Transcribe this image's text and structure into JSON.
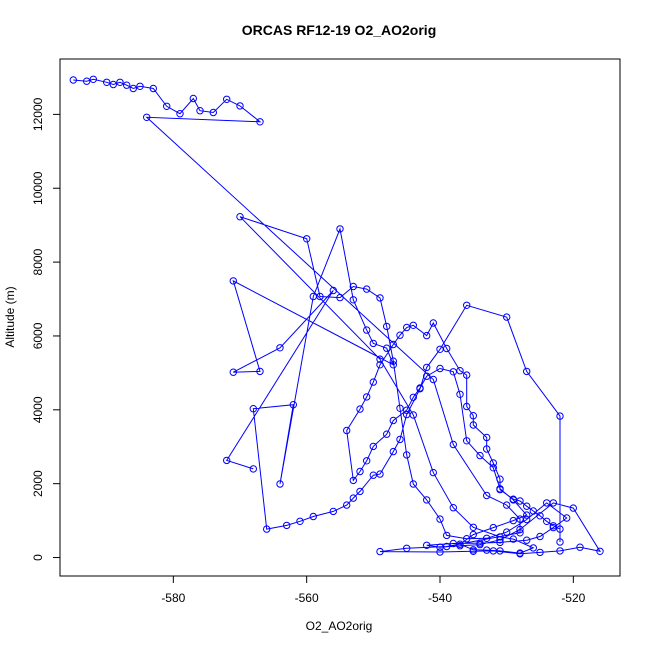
{
  "chart_data": {
    "type": "line",
    "title": "ORCAS RF12-19 O2_AO2orig",
    "xlabel": "O2_AO2orig",
    "ylabel": "Altitude (m)",
    "xlim": [
      -597,
      -513
    ],
    "ylim": [
      -500,
      13500
    ],
    "x_ticks": [
      -580,
      -560,
      -540,
      -520
    ],
    "y_ticks": [
      0,
      2000,
      4000,
      6000,
      8000,
      10000,
      12000
    ],
    "marker": "open-circle",
    "grid": false,
    "colors": {
      "series": "#0000ff",
      "axis": "#000000",
      "background": "#ffffff"
    },
    "series": [
      {
        "values": [
          [
            -595,
            12930
          ],
          [
            -593,
            12900
          ],
          [
            -592,
            12950
          ],
          [
            -590,
            12870
          ],
          [
            -589,
            12810
          ],
          [
            -588,
            12870
          ],
          [
            -587,
            12790
          ],
          [
            -586,
            12700
          ],
          [
            -585,
            12760
          ],
          [
            -583,
            12700
          ],
          [
            -581,
            12220
          ],
          [
            -579,
            12020
          ],
          [
            -577,
            12430
          ],
          [
            -576,
            12100
          ],
          [
            -574,
            12050
          ],
          [
            -572,
            12410
          ],
          [
            -570,
            12230
          ],
          [
            -567,
            11800
          ],
          [
            -584,
            11920
          ],
          [
            -541,
            4820
          ],
          [
            -538,
            3060
          ],
          [
            -533,
            1680
          ],
          [
            -530,
            1420
          ],
          [
            -528,
            1040
          ],
          [
            -528,
            670
          ],
          [
            -539,
            300
          ],
          [
            -545,
            250
          ],
          [
            -549,
            160
          ],
          [
            -540,
            150
          ],
          [
            -535,
            170
          ],
          [
            -532,
            180
          ],
          [
            -528,
            100
          ],
          [
            -525,
            140
          ],
          [
            -522,
            180
          ],
          [
            -519,
            280
          ],
          [
            -516,
            170
          ],
          [
            -520,
            1340
          ],
          [
            -523,
            1480
          ],
          [
            -528,
            760
          ],
          [
            -531,
            480
          ],
          [
            -534,
            350
          ],
          [
            -537,
            320
          ],
          [
            -540,
            280
          ],
          [
            -542,
            330
          ],
          [
            -538,
            380
          ],
          [
            -534,
            390
          ],
          [
            -531,
            410
          ],
          [
            -527,
            470
          ],
          [
            -525,
            570
          ],
          [
            -523,
            810
          ],
          [
            -521,
            1070
          ],
          [
            -524,
            1480
          ],
          [
            -527,
            1030
          ],
          [
            -530,
            690
          ],
          [
            -533,
            520
          ],
          [
            -536,
            510
          ],
          [
            -539,
            600
          ],
          [
            -540,
            1040
          ],
          [
            -542,
            1560
          ],
          [
            -544,
            1990
          ],
          [
            -545,
            2780
          ],
          [
            -546,
            4040
          ],
          [
            -547,
            5320
          ],
          [
            -548,
            6260
          ],
          [
            -549,
            7030
          ],
          [
            -551,
            7270
          ],
          [
            -553,
            7340
          ],
          [
            -555,
            7040
          ],
          [
            -558,
            7070
          ],
          [
            -560,
            8630
          ],
          [
            -570,
            9230
          ],
          [
            -549,
            5370
          ],
          [
            -544,
            3860
          ],
          [
            -541,
            2300
          ],
          [
            -538,
            1350
          ],
          [
            -535,
            820
          ],
          [
            -531,
            560
          ],
          [
            -529,
            500
          ],
          [
            -526,
            260
          ],
          [
            -528,
            120
          ],
          [
            -531,
            180
          ],
          [
            -533,
            200
          ],
          [
            -535,
            210
          ],
          [
            -537,
            360
          ],
          [
            -535,
            620
          ],
          [
            -532,
            810
          ],
          [
            -529,
            1000
          ],
          [
            -527,
            1150
          ],
          [
            -529,
            1560
          ],
          [
            -531,
            1860
          ],
          [
            -532,
            2430
          ],
          [
            -534,
            2760
          ],
          [
            -536,
            3160
          ],
          [
            -537,
            4420
          ],
          [
            -538,
            5030
          ],
          [
            -540,
            5120
          ],
          [
            -542,
            4910
          ],
          [
            -543,
            4590
          ],
          [
            -544,
            4340
          ],
          [
            -545,
            3990
          ],
          [
            -547,
            3710
          ],
          [
            -548,
            3340
          ],
          [
            -550,
            3010
          ],
          [
            -551,
            2620
          ],
          [
            -552,
            2330
          ],
          [
            -553,
            2090
          ],
          [
            -554,
            3440
          ],
          [
            -552,
            4020
          ],
          [
            -551,
            4350
          ],
          [
            -550,
            4750
          ],
          [
            -549,
            5220
          ],
          [
            -547,
            5770
          ],
          [
            -546,
            6020
          ],
          [
            -545,
            6230
          ],
          [
            -544,
            6290
          ],
          [
            -542,
            6010
          ],
          [
            -541,
            6350
          ],
          [
            -539,
            5660
          ],
          [
            -537,
            5060
          ],
          [
            -536,
            4940
          ],
          [
            -536,
            4090
          ],
          [
            -535,
            3840
          ],
          [
            -535,
            3590
          ],
          [
            -533,
            3250
          ],
          [
            -533,
            2940
          ],
          [
            -532,
            2560
          ],
          [
            -531,
            2120
          ],
          [
            -531,
            1840
          ],
          [
            -529,
            1580
          ],
          [
            -528,
            1530
          ],
          [
            -527,
            1390
          ],
          [
            -526,
            1260
          ],
          [
            -525,
            1130
          ],
          [
            -524,
            980
          ],
          [
            -523,
            860
          ],
          [
            -522,
            770
          ],
          [
            -522,
            420
          ],
          [
            -522,
            3830
          ],
          [
            -527,
            5040
          ],
          [
            -530,
            6510
          ],
          [
            -536,
            6830
          ],
          [
            -540,
            5640
          ],
          [
            -542,
            5150
          ],
          [
            -543,
            4570
          ],
          [
            -545,
            3870
          ],
          [
            -546,
            3200
          ],
          [
            -547,
            2870
          ],
          [
            -549,
            2260
          ],
          [
            -550,
            2230
          ],
          [
            -552,
            1790
          ],
          [
            -553,
            1610
          ],
          [
            -554,
            1420
          ],
          [
            -556,
            1250
          ],
          [
            -559,
            1110
          ],
          [
            -561,
            980
          ],
          [
            -563,
            870
          ],
          [
            -566,
            770
          ],
          [
            -568,
            4030
          ],
          [
            -562,
            4140
          ],
          [
            -564,
            1990
          ],
          [
            -559,
            7070
          ],
          [
            -555,
            8900
          ],
          [
            -553,
            6980
          ],
          [
            -551,
            6160
          ],
          [
            -550,
            5800
          ],
          [
            -548,
            5670
          ],
          [
            -547,
            5220
          ],
          [
            -571,
            7490
          ],
          [
            -567,
            5040
          ],
          [
            -571,
            5020
          ],
          [
            -564,
            5680
          ],
          [
            -556,
            7230
          ],
          [
            -572,
            2630
          ],
          [
            -568,
            2400
          ]
        ]
      }
    ]
  }
}
